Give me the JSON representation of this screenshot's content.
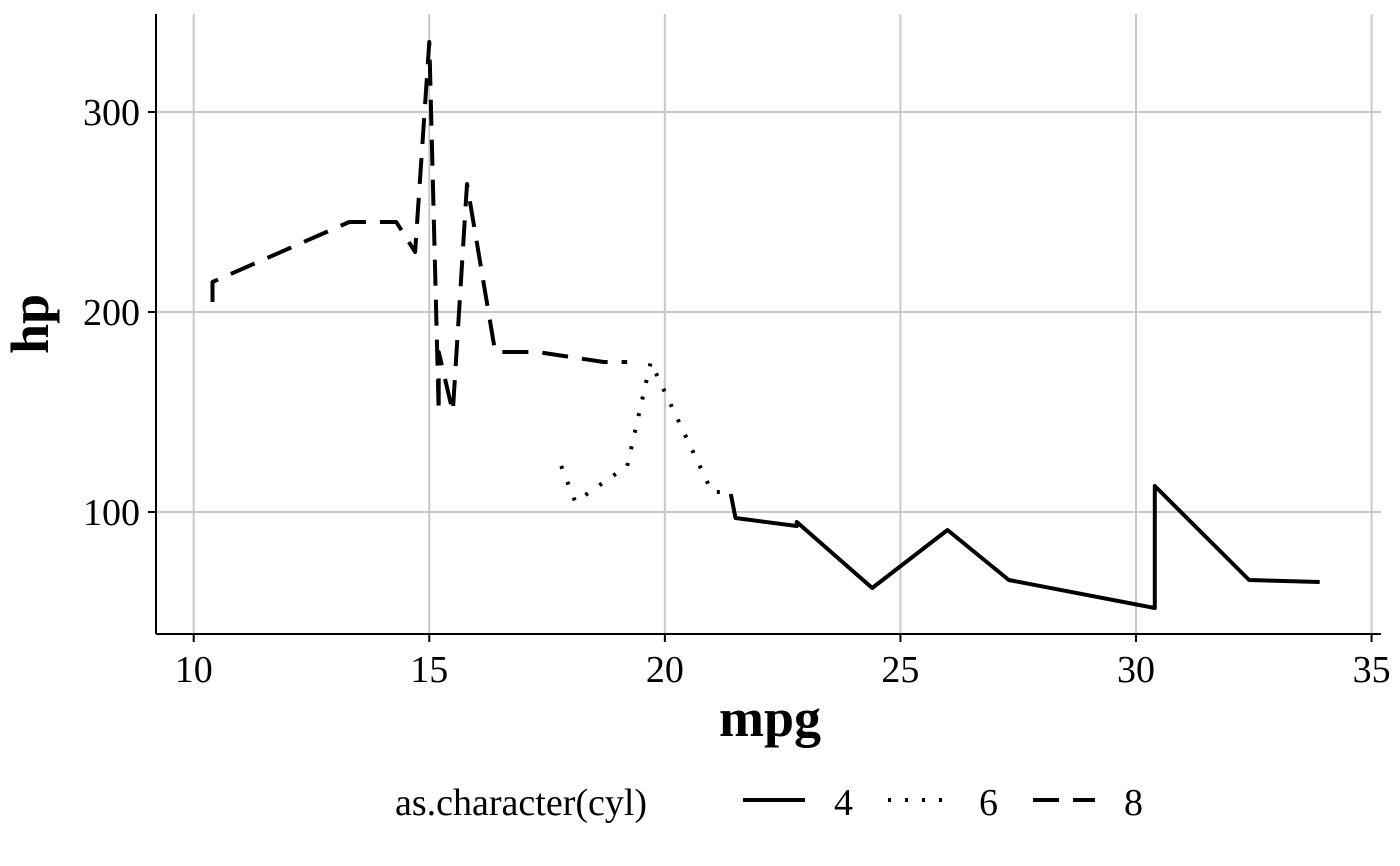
{
  "chart_data": {
    "type": "line",
    "xlabel": "mpg",
    "ylabel": "hp",
    "xlim": [
      9.2,
      35.2
    ],
    "ylim": [
      39,
      349
    ],
    "x_ticks": [
      10,
      15,
      20,
      25,
      30,
      35
    ],
    "y_ticks": [
      100,
      200,
      300
    ],
    "grid": true,
    "legend": {
      "title": "as.character(cyl)",
      "placement": "bottom",
      "entries": [
        "4",
        "6",
        "8"
      ]
    },
    "series": [
      {
        "name": "4",
        "line_style": "solid",
        "points": [
          {
            "x": 21.4,
            "y": 109
          },
          {
            "x": 21.5,
            "y": 97
          },
          {
            "x": 22.8,
            "y": 93
          },
          {
            "x": 22.8,
            "y": 95
          },
          {
            "x": 24.4,
            "y": 62
          },
          {
            "x": 26.0,
            "y": 91
          },
          {
            "x": 27.3,
            "y": 66
          },
          {
            "x": 30.4,
            "y": 52
          },
          {
            "x": 30.4,
            "y": 113
          },
          {
            "x": 32.4,
            "y": 66
          },
          {
            "x": 33.9,
            "y": 65
          }
        ]
      },
      {
        "name": "6",
        "line_style": "dotted",
        "points": [
          {
            "x": 17.8,
            "y": 123
          },
          {
            "x": 18.1,
            "y": 105
          },
          {
            "x": 19.2,
            "y": 123
          },
          {
            "x": 19.7,
            "y": 175
          },
          {
            "x": 21.0,
            "y": 110
          },
          {
            "x": 21.0,
            "y": 110
          },
          {
            "x": 21.4,
            "y": 110
          }
        ]
      },
      {
        "name": "8",
        "line_style": "dashed",
        "points": [
          {
            "x": 10.4,
            "y": 205
          },
          {
            "x": 10.4,
            "y": 215
          },
          {
            "x": 13.3,
            "y": 245
          },
          {
            "x": 14.3,
            "y": 245
          },
          {
            "x": 14.7,
            "y": 230
          },
          {
            "x": 15.0,
            "y": 335
          },
          {
            "x": 15.2,
            "y": 150
          },
          {
            "x": 15.2,
            "y": 180
          },
          {
            "x": 15.5,
            "y": 150
          },
          {
            "x": 15.8,
            "y": 264
          },
          {
            "x": 16.4,
            "y": 180
          },
          {
            "x": 17.3,
            "y": 180
          },
          {
            "x": 18.7,
            "y": 175
          },
          {
            "x": 19.2,
            "y": 175
          }
        ]
      }
    ]
  }
}
